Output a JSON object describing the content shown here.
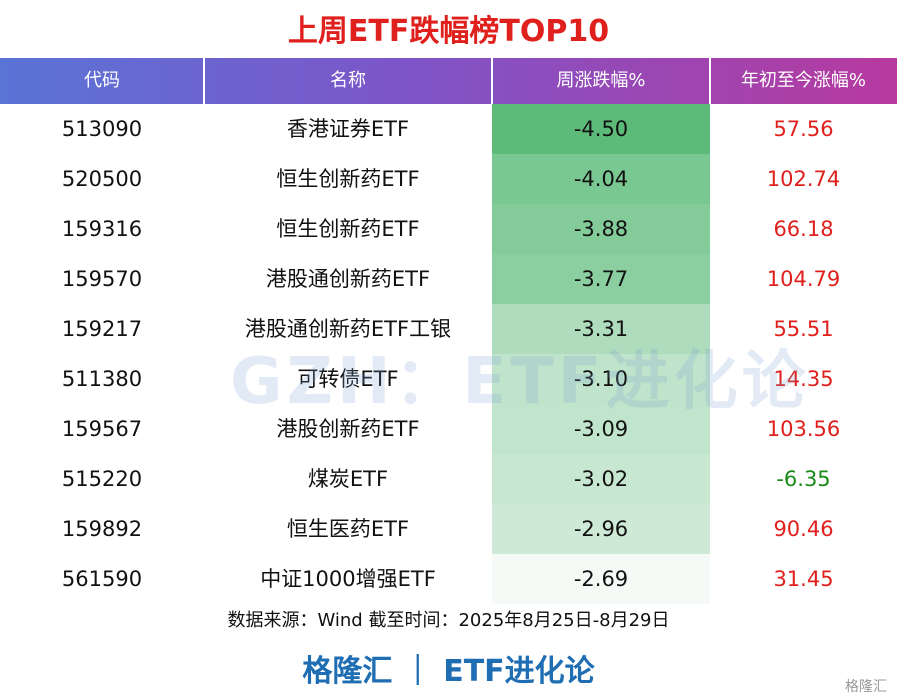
{
  "title": "上周ETF跌幅榜TOP10",
  "table": {
    "header": [
      "代码",
      "名称",
      "周涨跌幅%",
      "年初至今涨幅%"
    ],
    "rows": [
      [
        "513090",
        "香港证券ETF",
        "-4.50",
        "57.56"
      ],
      [
        "520500",
        "恒生创新药ETF",
        "-4.04",
        "102.74"
      ],
      [
        "159316",
        "恒生创新药ETF",
        "-3.88",
        "66.18"
      ],
      [
        "159570",
        "港股通创新药ETF",
        "-3.77",
        "104.79"
      ],
      [
        "159217",
        "港股通创新药ETF工银",
        "-3.31",
        "55.51"
      ],
      [
        "511380",
        "可转债ETF",
        "-3.10",
        "14.35"
      ],
      [
        "159567",
        "港股创新药ETF",
        "-3.09",
        "103.56"
      ],
      [
        "515220",
        "煤炭ETF",
        "-3.02",
        "-6.35"
      ],
      [
        "159892",
        "恒生医药ETF",
        "-2.96",
        "90.46"
      ],
      [
        "561590",
        "中证1000增强ETF",
        "-2.69",
        "31.45"
      ]
    ]
  },
  "source": "数据来源：Wind 截至时间：2025年8月25日-8月29日",
  "footer": "格隆汇 ｜ ETF进化论",
  "watermark": "GZH：ETF进化论",
  "logo": "格隆汇"
}
